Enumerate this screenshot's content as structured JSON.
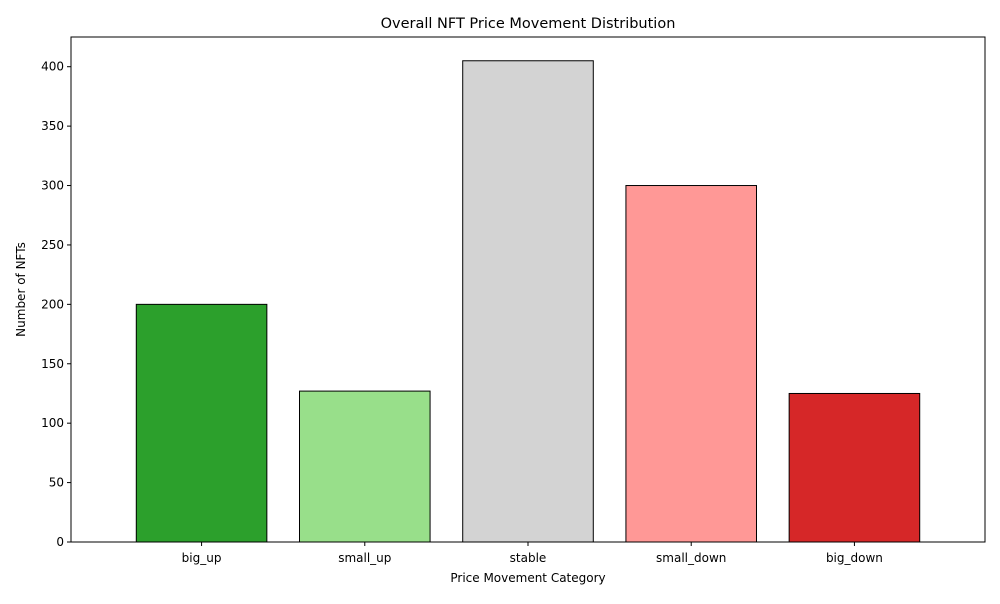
{
  "chart_data": {
    "type": "bar",
    "title": "Overall NFT Price Movement Distribution",
    "xlabel": "Price Movement Category",
    "ylabel": "Number of NFTs",
    "categories": [
      "big_up",
      "small_up",
      "stable",
      "small_down",
      "big_down"
    ],
    "values": [
      200,
      127,
      405,
      300,
      125
    ],
    "colors": [
      "#2ca02c",
      "#98df8a",
      "#d3d3d3",
      "#ff9896",
      "#d62728"
    ],
    "edge_color": "#000000",
    "ylim": [
      0,
      425
    ],
    "yticks": [
      0,
      50,
      100,
      150,
      200,
      250,
      300,
      350,
      400
    ],
    "grid": false,
    "legend": "none"
  }
}
